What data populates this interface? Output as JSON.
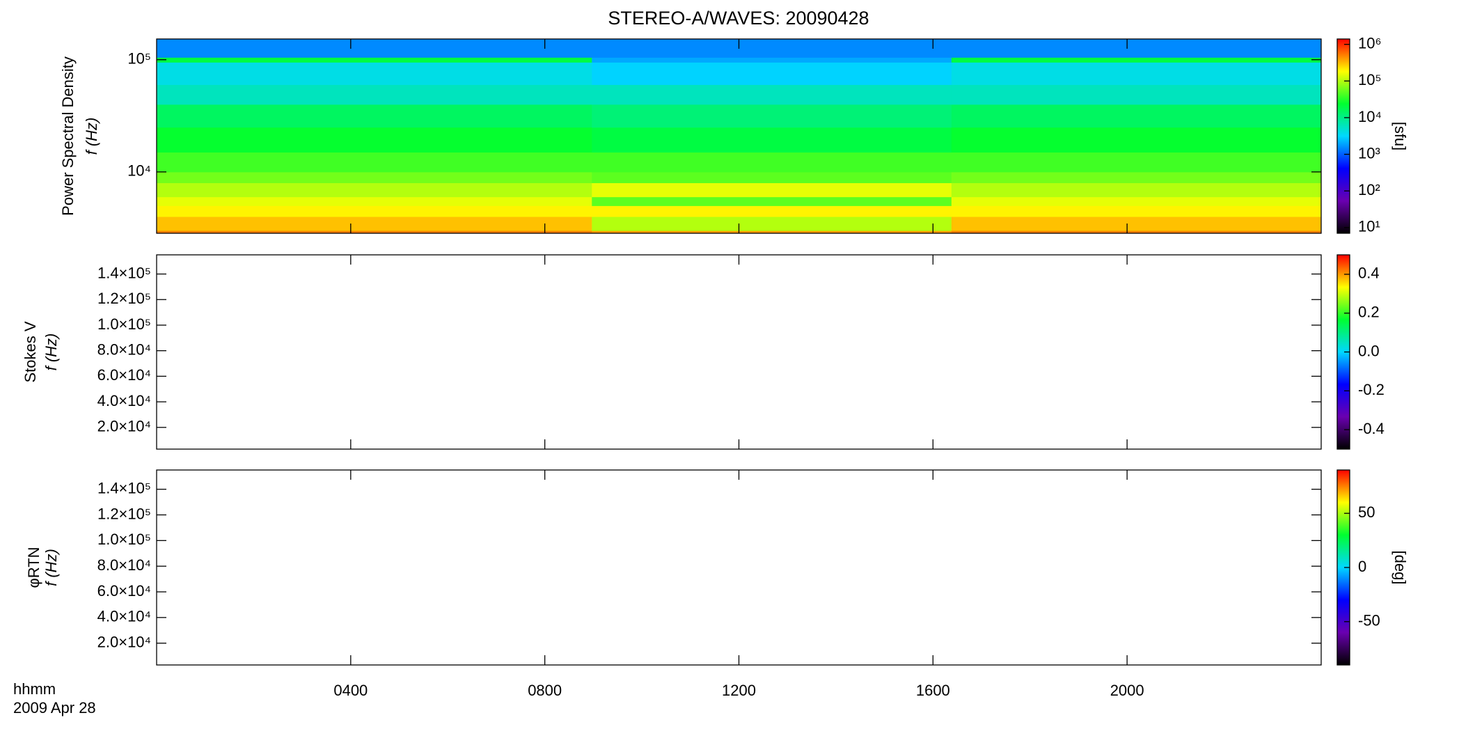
{
  "chart_data": [
    {
      "type": "heatmap",
      "title": "STEREO-A/WAVES: 20090428",
      "ylabel": [
        "Power Spectral Density",
        "f (Hz)"
      ],
      "ylog": true,
      "ylim": [
        2840,
        153000
      ],
      "yticks": [
        {
          "value": 10000,
          "label": "10⁴"
        },
        {
          "value": 100000,
          "label": "10⁵"
        }
      ],
      "x_edges": [
        0,
        8.97,
        16.38,
        24
      ],
      "y_edges": [
        2840,
        3000,
        4000,
        5000,
        6000,
        8000,
        10000,
        15000,
        25000,
        40000,
        60000,
        95000,
        105000,
        153000
      ],
      "z": [
        [
          500000,
          400000,
          500000
        ],
        [
          300000,
          100000,
          300000
        ],
        [
          200000,
          200000,
          200000
        ],
        [
          150000,
          50000,
          150000
        ],
        [
          100000,
          150000,
          100000
        ],
        [
          60000,
          50000,
          60000
        ],
        [
          40000,
          40000,
          40000
        ],
        [
          25000,
          20000,
          25000
        ],
        [
          15000,
          12000,
          15000
        ],
        [
          6000,
          6000,
          6000
        ],
        [
          4000,
          3000,
          4000
        ],
        [
          20000,
          2000,
          20000
        ],
        [
          1500,
          1500,
          1500
        ]
      ],
      "clog": true,
      "clim": [
        7,
        1400000
      ],
      "cticks": [
        {
          "value": 10,
          "label": "10¹"
        },
        {
          "value": 100,
          "label": "10²"
        },
        {
          "value": 1000,
          "label": "10³"
        },
        {
          "value": 10000,
          "label": "10⁴"
        },
        {
          "value": 100000,
          "label": "10⁵"
        },
        {
          "value": 1000000,
          "label": "10⁶"
        }
      ],
      "clabel": "[sfu]",
      "colormap": [
        "#000000",
        "#6a00b0",
        "#0000ff",
        "#00d8ff",
        "#00ff30",
        "#ffff00",
        "#ff0000"
      ]
    },
    {
      "type": "heatmap",
      "ylabel": [
        "Stokes V",
        "f (Hz)"
      ],
      "ylog": false,
      "ylim": [
        3000,
        155000
      ],
      "yticks": [
        {
          "value": 20000,
          "label": "2.0×10⁴"
        },
        {
          "value": 40000,
          "label": "4.0×10⁴"
        },
        {
          "value": 60000,
          "label": "6.0×10⁴"
        },
        {
          "value": 80000,
          "label": "8.0×10⁴"
        },
        {
          "value": 100000,
          "label": "1.0×10⁵"
        },
        {
          "value": 120000,
          "label": "1.2×10⁵"
        },
        {
          "value": 140000,
          "label": "1.4×10⁵"
        }
      ],
      "clog": false,
      "clim": [
        -0.5,
        0.5
      ],
      "cticks": [
        -0.4,
        -0.2,
        {
          "value": 0,
          "label": "0.0"
        },
        0.2,
        0.4
      ],
      "colormap": [
        "#000000",
        "#6a00b0",
        "#0000ff",
        "#00d8ff",
        "#00ff30",
        "#ffff00",
        "#ff0000"
      ]
    },
    {
      "type": "heatmap",
      "ylabel": [
        "φRTN",
        "f (Hz)"
      ],
      "ylog": false,
      "ylim": [
        3000,
        155000
      ],
      "yticks": [
        {
          "value": 20000,
          "label": "2.0×10⁴"
        },
        {
          "value": 40000,
          "label": "4.0×10⁴"
        },
        {
          "value": 60000,
          "label": "6.0×10⁴"
        },
        {
          "value": 80000,
          "label": "8.0×10⁴"
        },
        {
          "value": 100000,
          "label": "1.0×10⁵"
        },
        {
          "value": 120000,
          "label": "1.2×10⁵"
        },
        {
          "value": 140000,
          "label": "1.4×10⁵"
        }
      ],
      "clog": false,
      "clim": [
        -90,
        90
      ],
      "cticks": [
        -50,
        0,
        50
      ],
      "clabel": "[deg]",
      "colormap": [
        "#000000",
        "#6a00b0",
        "#0000ff",
        "#00d8ff",
        "#00ff30",
        "#ffff00",
        "#ff0000"
      ],
      "xlim": [
        0,
        24
      ],
      "xticks": [
        {
          "value": 4,
          "label": "0400"
        },
        {
          "value": 8,
          "label": "0800"
        },
        {
          "value": 12,
          "label": "1200"
        },
        {
          "value": 16,
          "label": "1600"
        },
        {
          "value": 20,
          "label": "2000"
        }
      ],
      "xlabel": "hhmm",
      "date": "2009 Apr 28"
    }
  ]
}
